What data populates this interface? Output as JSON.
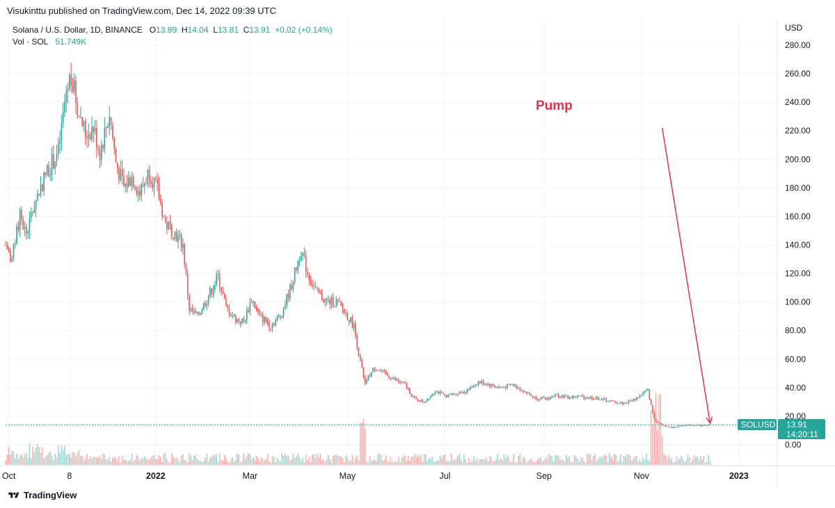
{
  "header": {
    "published_line": "Visukinttu published on TradingView.com, Dec 14, 2022 09:39 UTC"
  },
  "legend": {
    "symbol": "Solana / U.S. Dollar, 1D, BINANCE",
    "o_label": "O",
    "o_value": "13.89",
    "h_label": "H",
    "h_value": "14.04",
    "l_label": "L",
    "l_value": "13.81",
    "c_label": "C",
    "c_value": "13.91",
    "change": "+0.02 (+0.14%)",
    "vol_label": "Vol · SOL",
    "vol_value": "51.749K"
  },
  "footer": {
    "brand": "TradingView"
  },
  "colors": {
    "up": "#26a69a",
    "down": "#ef5350",
    "annotation": "#e8304a",
    "price_tag": "#26a69a"
  },
  "chart_data": {
    "type": "candlestick",
    "title": "Solana / U.S. Dollar, 1D, BINANCE",
    "currency_label": "USD",
    "ylim": [
      -4,
      287
    ],
    "y_ticks": [
      0,
      20,
      40,
      60,
      80,
      100,
      120,
      140,
      160,
      180,
      200,
      220,
      240,
      260,
      280
    ],
    "y_tick_labels": [
      "0.00",
      "20.00",
      "40.00",
      "60.00",
      "80.00",
      "100.00",
      "120.00",
      "140.00",
      "160.00",
      "180.00",
      "200.00",
      "220.00",
      "240.00",
      "260.00",
      "280.00"
    ],
    "x_range": [
      "2021-09-29",
      "2023-01-25"
    ],
    "x_ticks": [
      {
        "label": "Oct",
        "date": "2021-10-01",
        "bold": false
      },
      {
        "label": "8",
        "date": "2021-11-08",
        "bold": false
      },
      {
        "label": "2022",
        "date": "2022-01-01",
        "bold": true
      },
      {
        "label": "Mar",
        "date": "2022-03-01",
        "bold": false
      },
      {
        "label": "May",
        "date": "2022-05-01",
        "bold": false
      },
      {
        "label": "Jul",
        "date": "2022-07-01",
        "bold": false
      },
      {
        "label": "Sep",
        "date": "2022-09-01",
        "bold": false
      },
      {
        "label": "Nov",
        "date": "2022-11-01",
        "bold": false
      },
      {
        "label": "2023",
        "date": "2023-01-01",
        "bold": true
      }
    ],
    "price_anchors": [
      [
        "2021-09-29",
        140
      ],
      [
        "2021-10-03",
        130
      ],
      [
        "2021-10-08",
        160
      ],
      [
        "2021-10-12",
        148
      ],
      [
        "2021-10-18",
        172
      ],
      [
        "2021-10-25",
        192
      ],
      [
        "2021-11-01",
        205
      ],
      [
        "2021-11-06",
        248
      ],
      [
        "2021-11-09",
        260
      ],
      [
        "2021-11-13",
        236
      ],
      [
        "2021-11-18",
        218
      ],
      [
        "2021-11-23",
        222
      ],
      [
        "2021-11-27",
        205
      ],
      [
        "2021-12-03",
        232
      ],
      [
        "2021-12-07",
        198
      ],
      [
        "2021-12-12",
        180
      ],
      [
        "2021-12-17",
        188
      ],
      [
        "2021-12-22",
        176
      ],
      [
        "2021-12-28",
        192
      ],
      [
        "2022-01-02",
        178
      ],
      [
        "2022-01-07",
        155
      ],
      [
        "2022-01-13",
        148
      ],
      [
        "2022-01-18",
        140
      ],
      [
        "2022-01-22",
        95
      ],
      [
        "2022-01-27",
        90
      ],
      [
        "2022-02-02",
        102
      ],
      [
        "2022-02-09",
        118
      ],
      [
        "2022-02-14",
        96
      ],
      [
        "2022-02-20",
        88
      ],
      [
        "2022-02-25",
        86
      ],
      [
        "2022-03-02",
        102
      ],
      [
        "2022-03-07",
        90
      ],
      [
        "2022-03-14",
        84
      ],
      [
        "2022-03-20",
        90
      ],
      [
        "2022-03-27",
        112
      ],
      [
        "2022-04-02",
        137
      ],
      [
        "2022-04-06",
        120
      ],
      [
        "2022-04-12",
        106
      ],
      [
        "2022-04-18",
        100
      ],
      [
        "2022-04-24",
        100
      ],
      [
        "2022-04-30",
        92
      ],
      [
        "2022-05-05",
        83
      ],
      [
        "2022-05-09",
        58
      ],
      [
        "2022-05-12",
        44
      ],
      [
        "2022-05-18",
        54
      ],
      [
        "2022-05-24",
        50
      ],
      [
        "2022-05-30",
        46
      ],
      [
        "2022-06-06",
        42
      ],
      [
        "2022-06-12",
        32
      ],
      [
        "2022-06-18",
        30
      ],
      [
        "2022-06-25",
        38
      ],
      [
        "2022-07-01",
        34
      ],
      [
        "2022-07-08",
        36
      ],
      [
        "2022-07-15",
        38
      ],
      [
        "2022-07-22",
        44
      ],
      [
        "2022-07-29",
        42
      ],
      [
        "2022-08-05",
        40
      ],
      [
        "2022-08-12",
        42
      ],
      [
        "2022-08-19",
        38
      ],
      [
        "2022-08-26",
        33
      ],
      [
        "2022-09-02",
        32
      ],
      [
        "2022-09-09",
        35
      ],
      [
        "2022-09-16",
        33
      ],
      [
        "2022-09-23",
        34
      ],
      [
        "2022-09-30",
        33
      ],
      [
        "2022-10-07",
        32
      ],
      [
        "2022-10-14",
        30
      ],
      [
        "2022-10-21",
        29
      ],
      [
        "2022-10-28",
        32
      ],
      [
        "2022-11-02",
        36
      ],
      [
        "2022-11-05",
        38
      ],
      [
        "2022-11-08",
        22
      ],
      [
        "2022-11-10",
        16
      ],
      [
        "2022-11-14",
        14
      ],
      [
        "2022-11-20",
        12
      ],
      [
        "2022-11-26",
        13.5
      ],
      [
        "2022-12-02",
        14
      ],
      [
        "2022-12-08",
        13.5
      ],
      [
        "2022-12-14",
        13.91
      ]
    ],
    "last_price": 13.91,
    "last_price_label": "13.91",
    "countdown": "14:20:11",
    "symbol_tag": "SOLUSD",
    "annotations": [
      {
        "text": "Pump",
        "arrow_from": [
          "2022-11-14",
          222
        ],
        "arrow_to": [
          "2022-12-14",
          15
        ]
      }
    ]
  }
}
